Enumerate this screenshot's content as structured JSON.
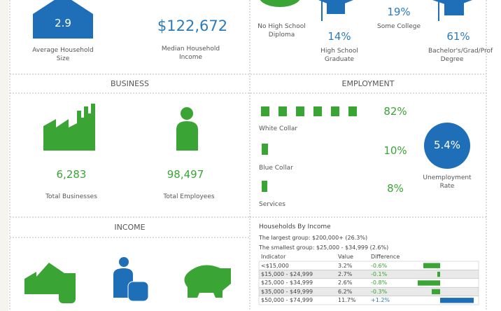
{
  "top": {
    "household_size": {
      "value": "2.9",
      "label": "Average Household Size"
    },
    "median_income": {
      "value": "$122,672",
      "label": "Median Household Income"
    },
    "education": [
      {
        "label": "No High School Diploma"
      },
      {
        "value": "14%",
        "label": "High School Graduate"
      },
      {
        "value": "19%",
        "label": "Some College"
      },
      {
        "value": "61%",
        "label": "Bachelor's/Grad/Prof Degree"
      }
    ]
  },
  "business": {
    "title": "BUSINESS",
    "items": [
      {
        "value": "6,283",
        "label": "Total Businesses"
      },
      {
        "value": "98,497",
        "label": "Total Employees"
      }
    ]
  },
  "employment": {
    "title": "EMPLOYMENT",
    "items": [
      {
        "value": "82%",
        "label": "White Collar"
      },
      {
        "value": "10%",
        "label": "Blue Collar"
      },
      {
        "value": "8%",
        "label": "Services"
      }
    ],
    "unemployment": {
      "value": "5.4%",
      "label": "Unemployment Rate"
    }
  },
  "income": {
    "title": "INCOME",
    "table": {
      "title": "Households By Income",
      "notes": [
        "The largest group: $200,000+ (26.3%)",
        "The smallest group: $25,000 - $34,999 (2.6%)"
      ],
      "header": [
        "Indicator",
        "Value",
        "Difference"
      ],
      "rows": [
        {
          "indicator": "<$15,000",
          "value": "3.2%",
          "difference": {
            "value": -0.6,
            "label": "-0.6%"
          }
        },
        {
          "indicator": "$15,000 - $24,999",
          "value": "2.7%",
          "difference": {
            "value": -0.1,
            "label": "-0.1%"
          }
        },
        {
          "indicator": "$25,000 - $34,999",
          "value": "2.6%",
          "difference": {
            "value": -0.8,
            "label": "-0.8%"
          }
        },
        {
          "indicator": "$35,000 - $49,999",
          "value": "6.2%",
          "difference": {
            "value": -0.3,
            "label": "-0.3%"
          }
        },
        {
          "indicator": "$50,000 - $74,999",
          "value": "11.7%",
          "difference": {
            "value": 1.2,
            "label": "+1.2%"
          }
        }
      ]
    }
  }
}
